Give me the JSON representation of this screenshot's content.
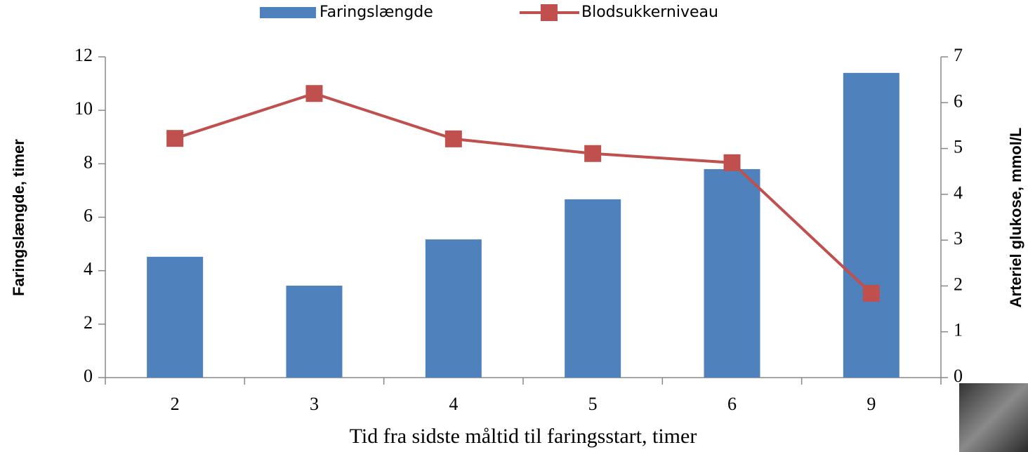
{
  "chart_data": {
    "type": "bar",
    "x_label": "Tid fra sidste måltid til faringsstart, timer",
    "y_label": "Faringslængde, timer",
    "y2_label": "Arteriel glukose, mmol/L",
    "categories": [
      "2",
      "3",
      "4",
      "5",
      "6",
      "9"
    ],
    "series": [
      {
        "name": "Faringslængde",
        "type": "bar",
        "color": "#4f81bd",
        "values": [
          4.52,
          3.44,
          5.17,
          6.67,
          7.8,
          11.4
        ]
      },
      {
        "name": "Blodsukkerniveau",
        "type": "line",
        "axis": "y2",
        "color": "#c0504d",
        "values": [
          5.22,
          6.2,
          5.21,
          4.89,
          4.69,
          1.84
        ]
      }
    ],
    "ylim": [
      0,
      12
    ],
    "yticks": [
      0,
      2,
      4,
      6,
      8,
      10,
      12
    ],
    "y2lim": [
      0,
      7
    ],
    "y2ticks": [
      0,
      1,
      2,
      3,
      4,
      5,
      6,
      7
    ],
    "legend": "top"
  }
}
